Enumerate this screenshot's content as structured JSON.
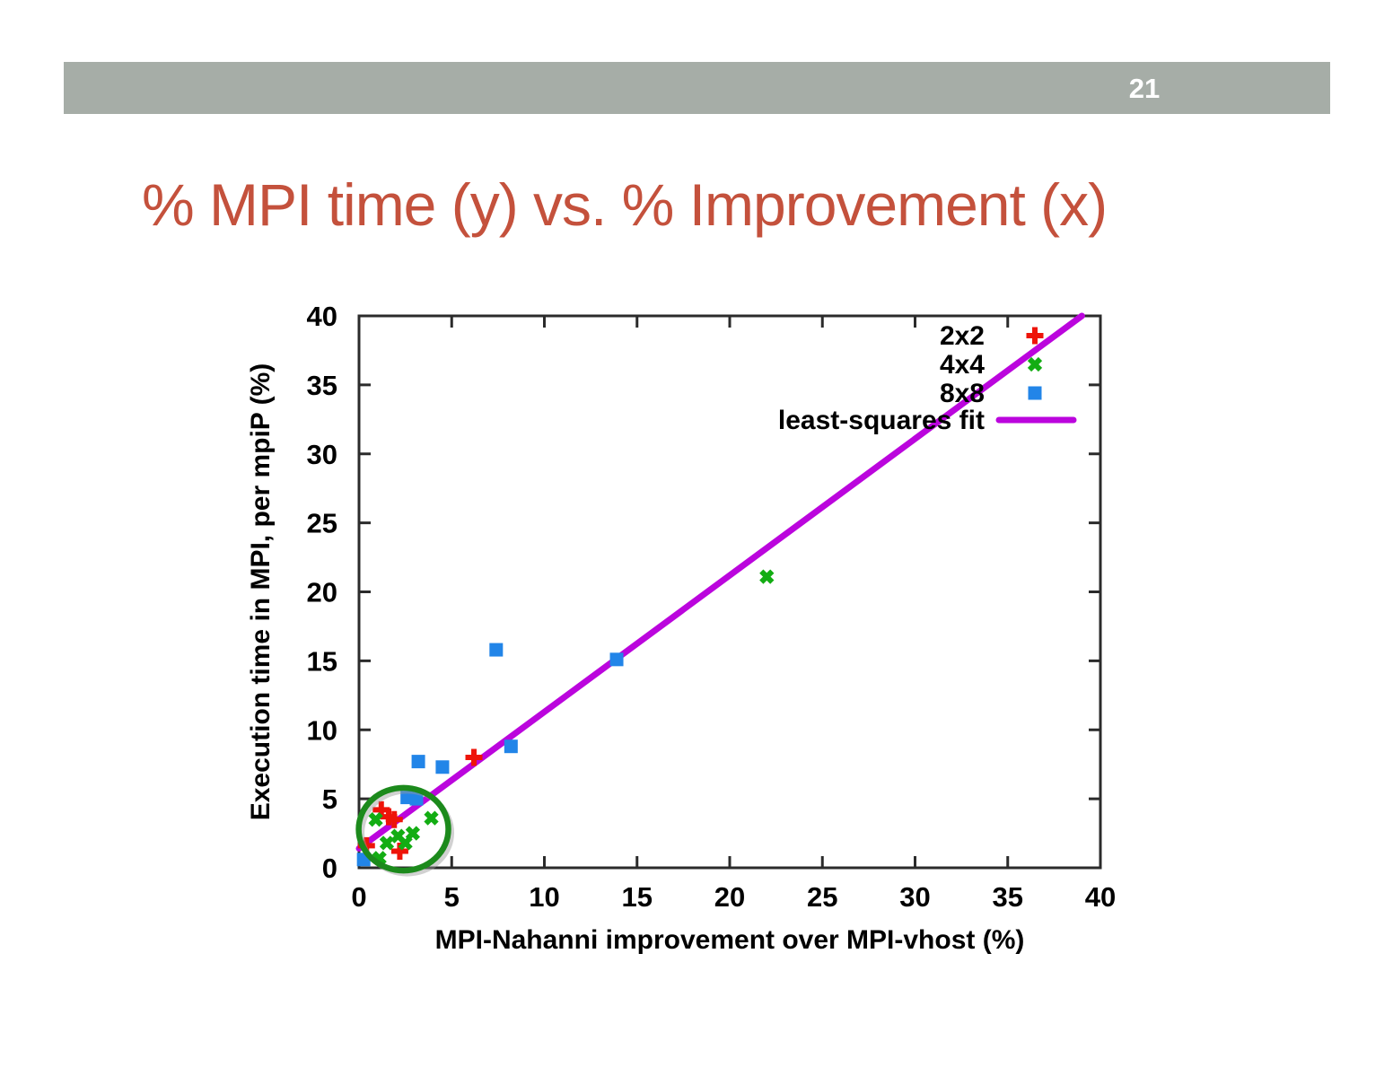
{
  "slide": {
    "page_number": "21",
    "title": "% MPI time (y) vs. % Improvement (x)",
    "colors": {
      "title": "#C4513C",
      "header_bar": "#A6ADA7",
      "page_number": "#FFFFFF"
    }
  },
  "chart_data": {
    "type": "scatter",
    "xlabel": "MPI-Nahanni improvement over MPI-vhost (%)",
    "ylabel": "Execution time in MPI, per mpiP (%)",
    "xlim": [
      0,
      40
    ],
    "ylim": [
      0,
      40
    ],
    "xticks": [
      0,
      5,
      10,
      15,
      20,
      25,
      30,
      35,
      40
    ],
    "yticks": [
      0,
      5,
      10,
      15,
      20,
      25,
      30,
      35,
      40
    ],
    "grid": false,
    "legend_position": "inside top-right",
    "series": [
      {
        "name": "2x2",
        "marker": "plus",
        "color": "#EE1409",
        "points": [
          [
            1.2,
            4.2
          ],
          [
            1.6,
            3.7
          ],
          [
            1.9,
            3.5
          ],
          [
            0.4,
            1.6
          ],
          [
            2.2,
            1.2
          ],
          [
            6.2,
            8.0
          ]
        ]
      },
      {
        "name": "4x4",
        "marker": "x",
        "color": "#13AD13",
        "points": [
          [
            0.9,
            3.5
          ],
          [
            1.1,
            0.7
          ],
          [
            1.5,
            1.8
          ],
          [
            2.1,
            2.3
          ],
          [
            2.5,
            1.8
          ],
          [
            2.9,
            2.5
          ],
          [
            3.9,
            3.6
          ],
          [
            22.0,
            21.1
          ]
        ]
      },
      {
        "name": "8x8",
        "marker": "square",
        "color": "#2285E8",
        "points": [
          [
            0.25,
            0.6
          ],
          [
            2.6,
            5.1
          ],
          [
            3.1,
            5.0
          ],
          [
            3.2,
            7.7
          ],
          [
            4.5,
            7.3
          ],
          [
            7.4,
            15.8
          ],
          [
            8.2,
            8.8
          ],
          [
            13.9,
            15.1
          ]
        ]
      }
    ],
    "fit_line": {
      "name": "least-squares fit",
      "color": "#BB05DD",
      "from": [
        0,
        1.4
      ],
      "to": [
        39,
        40
      ]
    },
    "annotation_ellipse": {
      "cx": 2.4,
      "cy": 2.8,
      "rx": 2.42,
      "ry": 3.0,
      "color": "#1C8A1C"
    }
  }
}
